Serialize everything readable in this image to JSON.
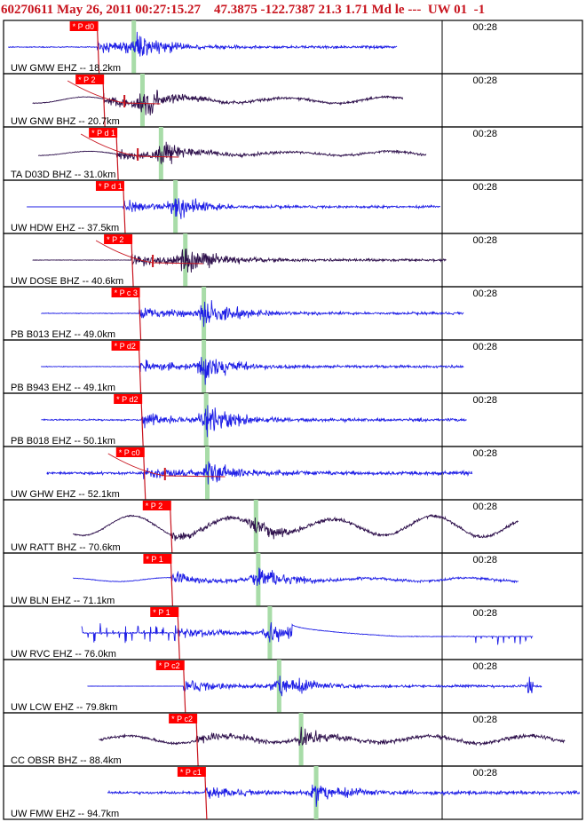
{
  "header": {
    "event_id": "60270611",
    "datetime": "May 26, 2011 00:27:15.27",
    "lat": "47.3875",
    "lon": "-122.7387",
    "depth": "21.3",
    "magnitude": "1.71",
    "mag_type": "Md",
    "extra": "le ---",
    "network": "UW",
    "version": "01",
    "trailing": "-1"
  },
  "colors": {
    "header_text": "#c8141e",
    "trace_blue": "#1e1ee6",
    "trace_purple": "#2d0f4b",
    "pick_box": "#ff0000",
    "pick_line": "#c8141e",
    "predicted_arrival": "#a8dca8",
    "frame": "#000000"
  },
  "chart_data": {
    "type": "line",
    "description_free": true,
    "time_tick_label": "00:28",
    "traces": [
      {
        "label": "UW GMW EHZ -- 18.2km",
        "pick": "P d0",
        "color": "blue",
        "p_time": 0.162,
        "s_time": 0.225,
        "start": 0.008,
        "end": 0.68,
        "noise": 0.08,
        "long_period": 0.0,
        "peak": 0.85,
        "extra": ""
      },
      {
        "label": "UW GNW BHZ -- 20.7km",
        "pick": "P 2",
        "color": "purple",
        "p_time": 0.172,
        "s_time": 0.24,
        "start": 0.05,
        "end": 0.69,
        "noise": 0.05,
        "long_period": 0.18,
        "peak": 0.75,
        "extra": "curve"
      },
      {
        "label": "TA D03D BHZ -- 31.0km",
        "pick": "P d 1",
        "color": "purple",
        "p_time": 0.195,
        "s_time": 0.272,
        "start": 0.06,
        "end": 0.73,
        "noise": 0.05,
        "long_period": 0.12,
        "peak": 0.7,
        "extra": "curve"
      },
      {
        "label": "UW HDW EHZ -- 37.5km",
        "pick": "P d 1",
        "color": "blue",
        "p_time": 0.207,
        "s_time": 0.297,
        "start": 0.04,
        "end": 0.755,
        "noise": 0.0,
        "long_period": 0.0,
        "peak": 0.7,
        "extra": "flat"
      },
      {
        "label": "UW DOSE BHZ -- 40.6km",
        "pick": "P 2",
        "color": "purple",
        "p_time": 0.221,
        "s_time": 0.314,
        "start": 0.05,
        "end": 0.765,
        "noise": 0.04,
        "long_period": 0.0,
        "peak": 0.95,
        "extra": "curve"
      },
      {
        "label": "PB B013 EHZ -- 49.0km",
        "pick": "P c 3",
        "color": "blue",
        "p_time": 0.234,
        "s_time": 0.346,
        "start": 0.065,
        "end": 0.795,
        "noise": 0.06,
        "long_period": 0.0,
        "peak": 0.85,
        "extra": ""
      },
      {
        "label": "PB B943 EHZ -- 49.1km",
        "pick": "P d2",
        "color": "blue",
        "p_time": 0.234,
        "s_time": 0.346,
        "start": 0.065,
        "end": 0.795,
        "noise": 0.06,
        "long_period": 0.0,
        "peak": 0.85,
        "extra": ""
      },
      {
        "label": "PB B018 EHZ -- 50.1km",
        "pick": "P d2",
        "color": "blue",
        "p_time": 0.238,
        "s_time": 0.35,
        "start": 0.065,
        "end": 0.8,
        "noise": 0.12,
        "long_period": 0.0,
        "peak": 0.9,
        "extra": ""
      },
      {
        "label": "UW GHW EHZ -- 52.1km",
        "pick": "P c0",
        "color": "blue",
        "p_time": 0.242,
        "s_time": 0.352,
        "start": 0.075,
        "end": 0.81,
        "noise": 0.22,
        "long_period": 0.0,
        "peak": 0.8,
        "extra": "curve"
      },
      {
        "label": "UW RATT BHZ -- 70.6km",
        "pick": "P 2",
        "color": "purple",
        "p_time": 0.288,
        "s_time": 0.436,
        "start": 0.12,
        "end": 0.89,
        "noise": 0.12,
        "long_period": 0.55,
        "peak": 0.55,
        "extra": ""
      },
      {
        "label": "UW BLN EHZ -- 71.1km",
        "pick": "P 1",
        "color": "blue",
        "p_time": 0.289,
        "s_time": 0.44,
        "start": 0.12,
        "end": 0.89,
        "noise": 0.05,
        "long_period": 0.1,
        "peak": 0.75,
        "extra": ""
      },
      {
        "label": "UW RVC EHZ -- 76.0km",
        "pick": "P 1",
        "color": "blue",
        "p_time": 0.301,
        "s_time": 0.46,
        "start": 0.135,
        "end": 0.915,
        "noise": 0.08,
        "long_period": 0.0,
        "peak": 0.7,
        "extra": "rvc"
      },
      {
        "label": "UW LCW EHZ -- 79.8km",
        "pick": "P c2",
        "color": "blue",
        "p_time": 0.311,
        "s_time": 0.476,
        "start": 0.145,
        "end": 0.93,
        "noise": 0.02,
        "long_period": 0.0,
        "peak": 0.85,
        "extra": "lcw"
      },
      {
        "label": "CC OBSR BHZ -- 88.4km",
        "pick": "P c2",
        "color": "purple",
        "p_time": 0.333,
        "s_time": 0.514,
        "start": 0.165,
        "end": 0.97,
        "noise": 0.22,
        "long_period": 0.2,
        "peak": 0.65,
        "extra": ""
      },
      {
        "label": "UW FMW EHZ -- 94.7km",
        "pick": "P c1",
        "color": "blue",
        "p_time": 0.348,
        "s_time": 0.54,
        "start": 0.18,
        "end": 0.995,
        "noise": 0.22,
        "long_period": 0.0,
        "peak": 0.7,
        "extra": ""
      }
    ]
  }
}
